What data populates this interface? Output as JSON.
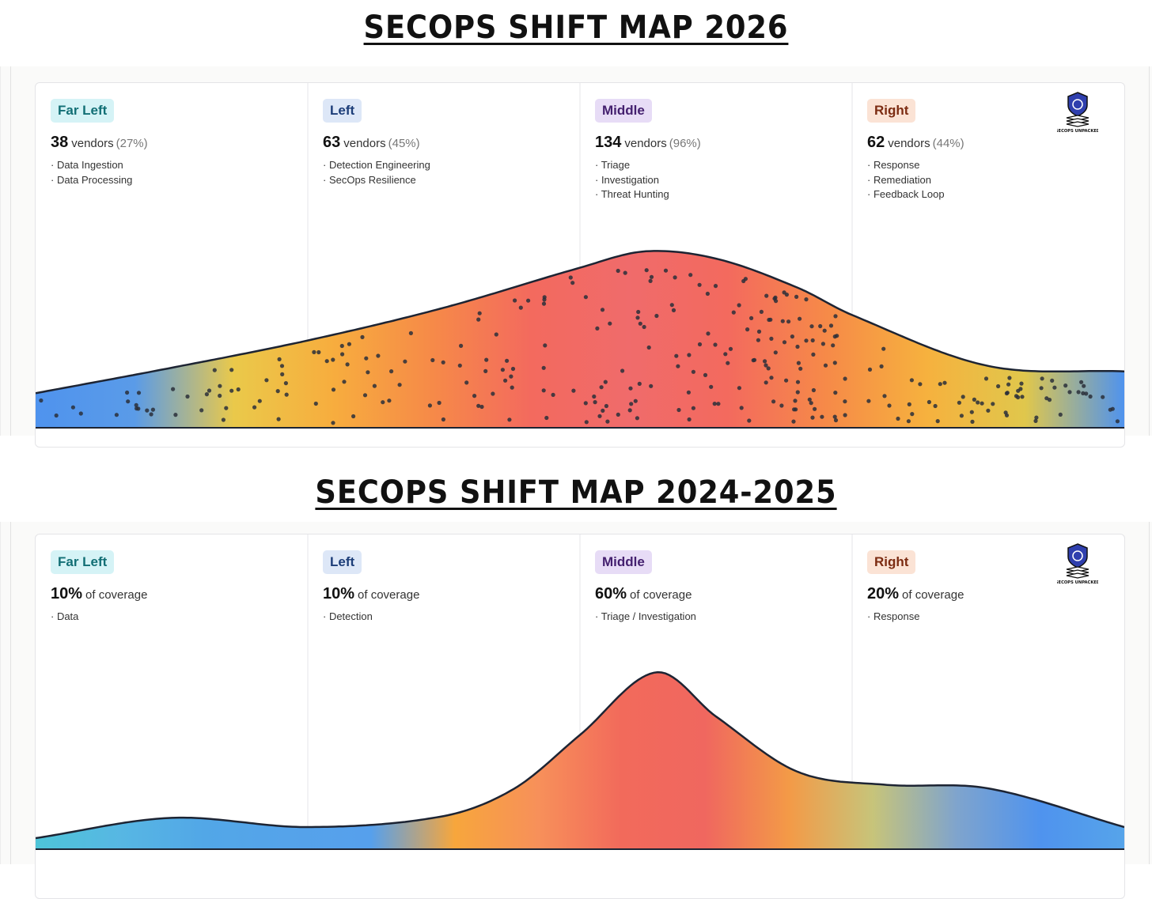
{
  "chart_data": [
    {
      "type": "area",
      "title": "SECOPS SHIFT MAP 2026",
      "segments": [
        {
          "label": "Far Left",
          "count": "38",
          "unit": "vendors",
          "pct": "(27%)",
          "items": [
            "· Data Ingestion",
            "· Data Processing"
          ],
          "badge_bg": "#d5f3f6",
          "badge_fg": "#126f75"
        },
        {
          "label": "Left",
          "count": "63",
          "unit": "vendors",
          "pct": "(45%)",
          "items": [
            "· Detection Engineering",
            "· SecOps Resilience"
          ],
          "badge_bg": "#dde7f7",
          "badge_fg": "#1c3d78"
        },
        {
          "label": "Middle",
          "count": "134",
          "unit": "vendors",
          "pct": "(96%)",
          "items": [
            "· Triage",
            "· Investigation",
            "· Threat Hunting"
          ],
          "badge_bg": "#e7dcf6",
          "badge_fg": "#44206f"
        },
        {
          "label": "Right",
          "count": "62",
          "unit": "vendors",
          "pct": "(44%)",
          "items": [
            "· Response",
            "· Remediation",
            "· Feedback Loop"
          ],
          "badge_bg": "#fbe3d5",
          "badge_fg": "#7c2c12"
        }
      ],
      "curve": {
        "x": [
          0,
          0.125,
          0.25,
          0.375,
          0.5,
          0.56,
          0.625,
          0.7,
          0.75,
          0.875,
          1
        ],
        "y": [
          0.19,
          0.33,
          0.48,
          0.66,
          0.88,
          0.97,
          0.93,
          0.77,
          0.62,
          0.34,
          0.31
        ]
      },
      "dot_counts": [
        38,
        63,
        134,
        62
      ],
      "gradient": [
        "#4f93ee",
        "#5a9be8",
        "#eac94a",
        "#f7ad3e",
        "#f68a48",
        "#f36a5e",
        "#f06b6b",
        "#f36a5e",
        "#f68a48",
        "#f6b13e",
        "#e0c74c",
        "#4f93ee"
      ]
    },
    {
      "type": "area",
      "title": "SECOPS SHIFT MAP 2024-2025",
      "segments": [
        {
          "label": "Far Left",
          "count": "10%",
          "unit": "of coverage",
          "items": [
            "· Data"
          ],
          "badge_bg": "#d5f3f6",
          "badge_fg": "#126f75"
        },
        {
          "label": "Left",
          "count": "10%",
          "unit": "of coverage",
          "items": [
            "· Detection"
          ],
          "badge_bg": "#dde7f7",
          "badge_fg": "#1c3d78"
        },
        {
          "label": "Middle",
          "count": "60%",
          "unit": "of coverage",
          "items": [
            "· Triage / Investigation"
          ],
          "badge_bg": "#e7dcf6",
          "badge_fg": "#44206f"
        },
        {
          "label": "Right",
          "count": "20%",
          "unit": "of coverage",
          "items": [
            "· Response"
          ],
          "badge_bg": "#fbe3d5",
          "badge_fg": "#7c2c12"
        }
      ],
      "curve": {
        "x": [
          0,
          0.125,
          0.25,
          0.375,
          0.44,
          0.5,
          0.57,
          0.625,
          0.7,
          0.78,
          0.875,
          1
        ],
        "y": [
          0.06,
          0.17,
          0.12,
          0.18,
          0.33,
          0.62,
          0.96,
          0.72,
          0.42,
          0.35,
          0.33,
          0.12
        ]
      },
      "gradient": [
        "#4ec4d8",
        "#57b7e3",
        "#52a7e7",
        "#55a3ea",
        "#56a0ec",
        "#f7a63c",
        "#f7905a",
        "#f26a5b",
        "#f0675f",
        "#f39a47",
        "#c7c47a",
        "#7fa4cd",
        "#4f93ee",
        "#56a4ea"
      ]
    }
  ],
  "brand": {
    "logo_text": "SECOPS UNPACKED"
  }
}
